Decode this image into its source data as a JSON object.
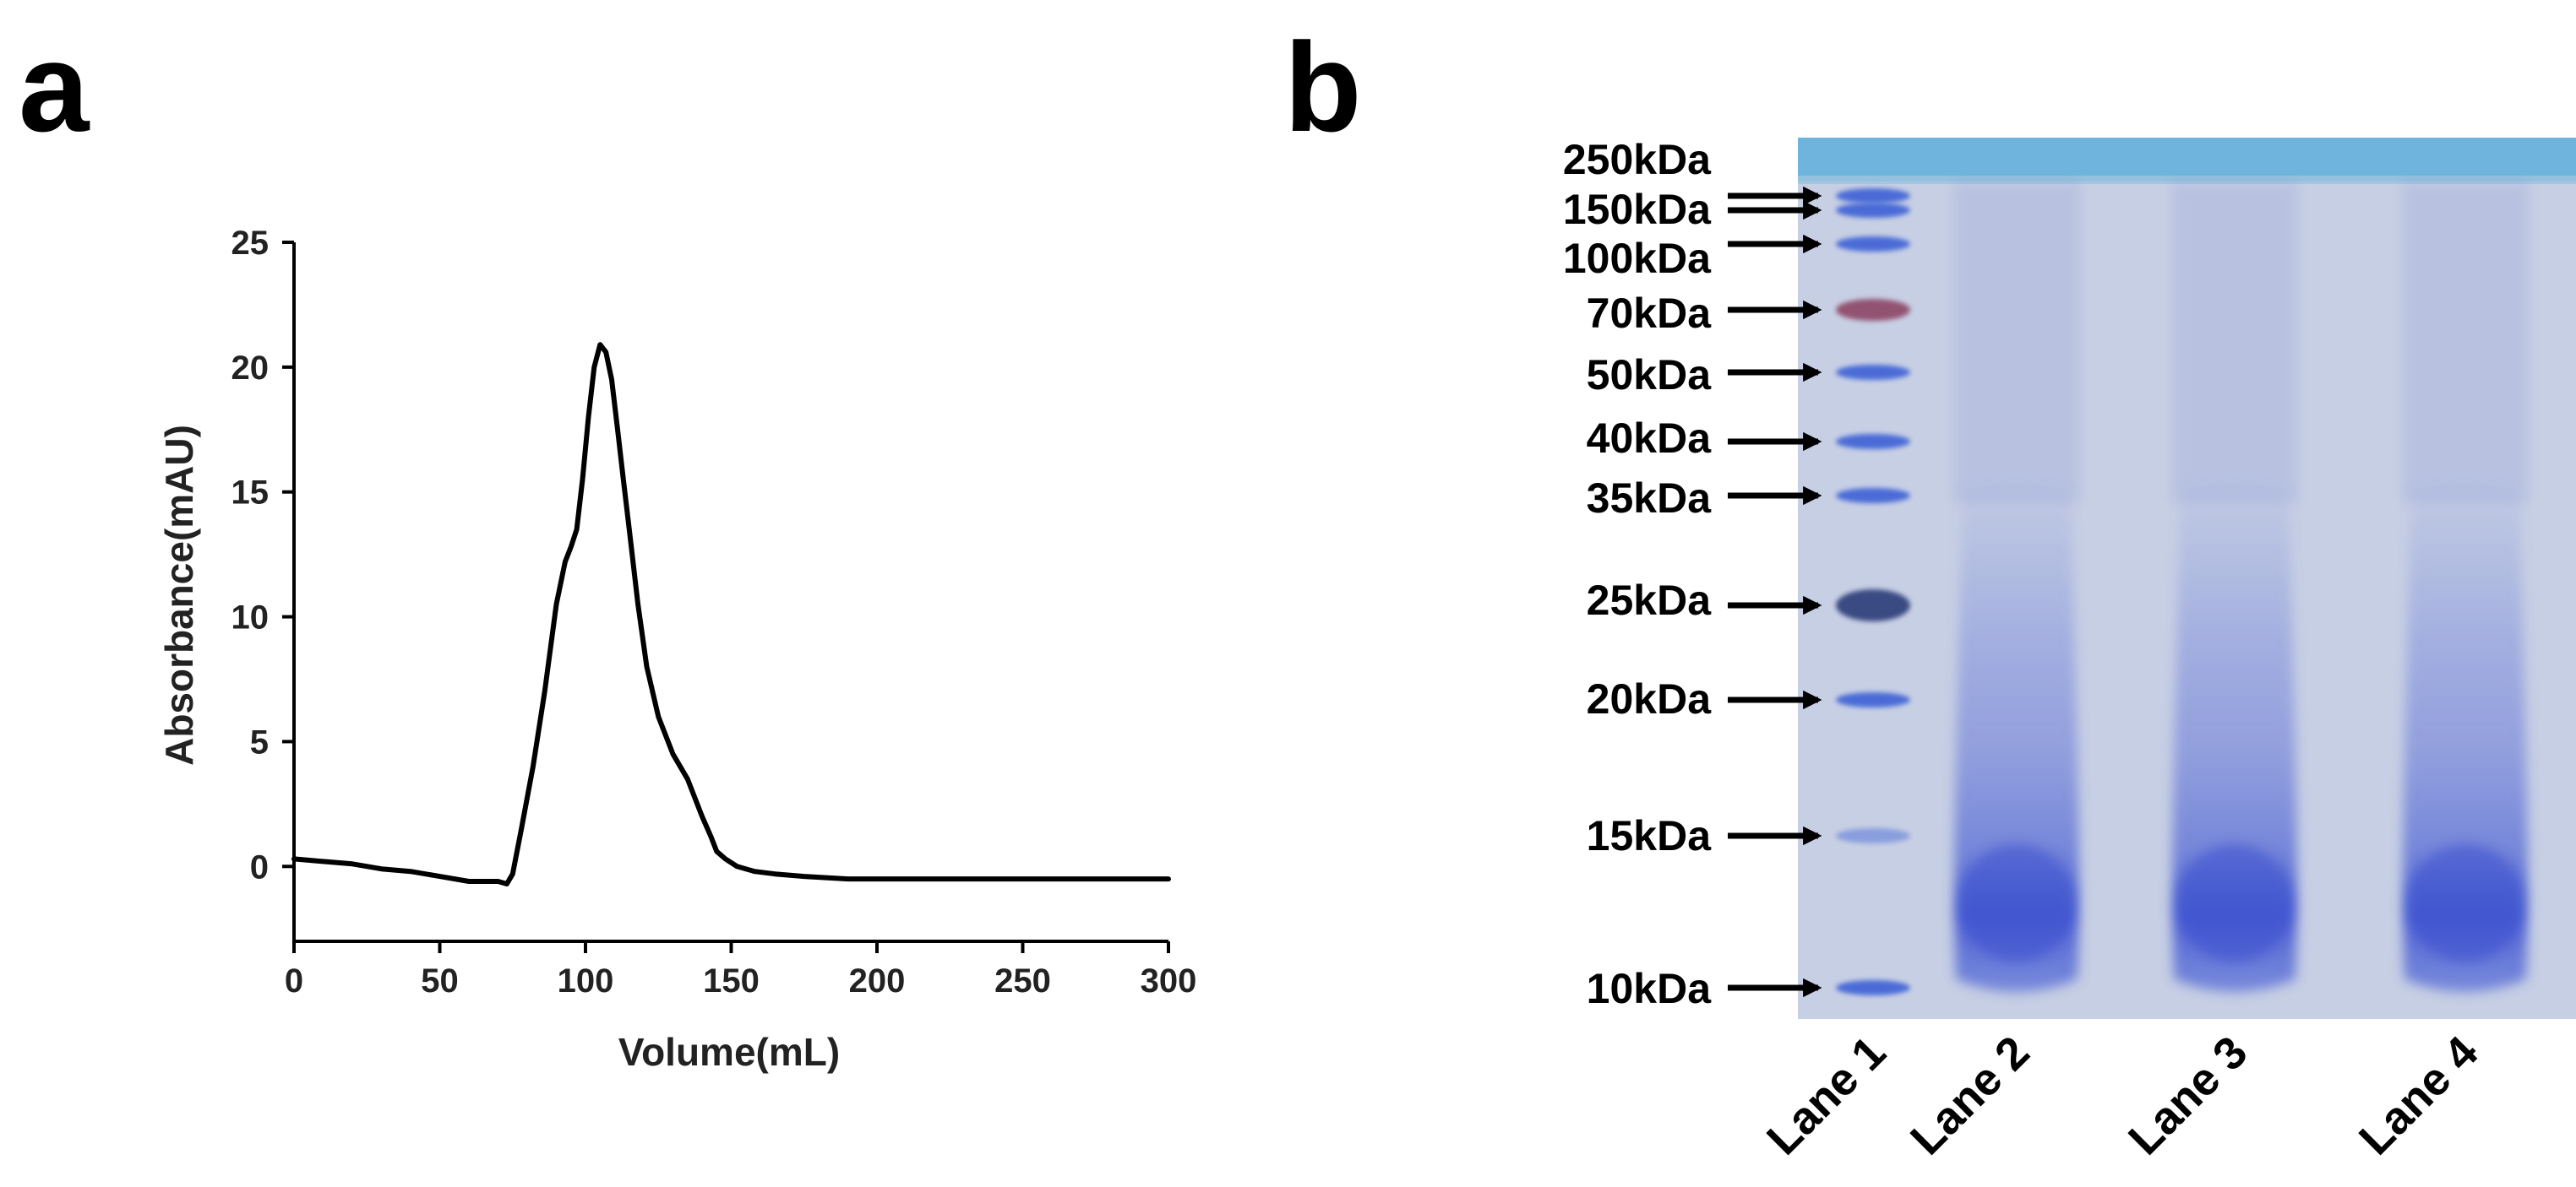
{
  "panels": {
    "a": {
      "letter": "a"
    },
    "b": {
      "letter": "b"
    }
  },
  "chart_data": [
    {
      "type": "line",
      "panel": "a",
      "title": "",
      "xlabel": "Volume(mL)",
      "ylabel": "Absorbance(mAU)",
      "xlim": [
        0,
        300
      ],
      "ylim": [
        -3,
        25
      ],
      "xticks": [
        0,
        50,
        100,
        150,
        200,
        250,
        300
      ],
      "yticks": [
        0,
        5,
        10,
        15,
        20,
        25
      ],
      "grid": false,
      "legend": "none",
      "series": [
        {
          "name": "Absorbance",
          "x": [
            0,
            10,
            20,
            30,
            40,
            50,
            60,
            70,
            73,
            75,
            78,
            82,
            86,
            90,
            93,
            95,
            97,
            99,
            101,
            103,
            105,
            107,
            109,
            111,
            113,
            115,
            118,
            121,
            125,
            130,
            135,
            140,
            143,
            145,
            148,
            152,
            158,
            165,
            175,
            190,
            210,
            230,
            250,
            270,
            290,
            300
          ],
          "y": [
            0.3,
            0.2,
            0.1,
            -0.1,
            -0.2,
            -0.4,
            -0.6,
            -0.6,
            -0.7,
            -0.3,
            1.5,
            4.0,
            7.0,
            10.5,
            12.2,
            12.8,
            13.5,
            15.5,
            18.0,
            20.0,
            20.9,
            20.6,
            19.5,
            17.5,
            15.5,
            13.5,
            10.5,
            8.0,
            6.0,
            4.5,
            3.5,
            2.0,
            1.2,
            0.6,
            0.3,
            0.0,
            -0.2,
            -0.3,
            -0.4,
            -0.5,
            -0.5,
            -0.5,
            -0.5,
            -0.5,
            -0.5,
            -0.5
          ]
        }
      ]
    },
    {
      "type": "gel",
      "panel": "b",
      "title": "",
      "marker_labels": [
        "250kDa",
        "150kDa",
        "100kDa",
        "70kDa",
        "50kDa",
        "40kDa",
        "35kDa",
        "25kDa",
        "20kDa",
        "15kDa",
        "10kDa"
      ],
      "marker_kda": [
        250,
        150,
        100,
        70,
        50,
        40,
        35,
        25,
        20,
        15,
        10
      ],
      "lane_labels": [
        "Lane 1",
        "Lane 2",
        "Lane 3",
        "Lane 4"
      ],
      "lane_contents": [
        "Protein ladder",
        "Sample smear",
        "Sample smear",
        "Sample smear"
      ]
    }
  ],
  "colors": {
    "gel_background": "#c7cfe4",
    "gel_top_band": "#6fb4dc",
    "ladder_band": "#3f63d6",
    "ladder_70kda": "#8e4869",
    "ladder_25kda": "#2d3f7a",
    "smear": "#3a4ed0",
    "text": "#000000"
  }
}
